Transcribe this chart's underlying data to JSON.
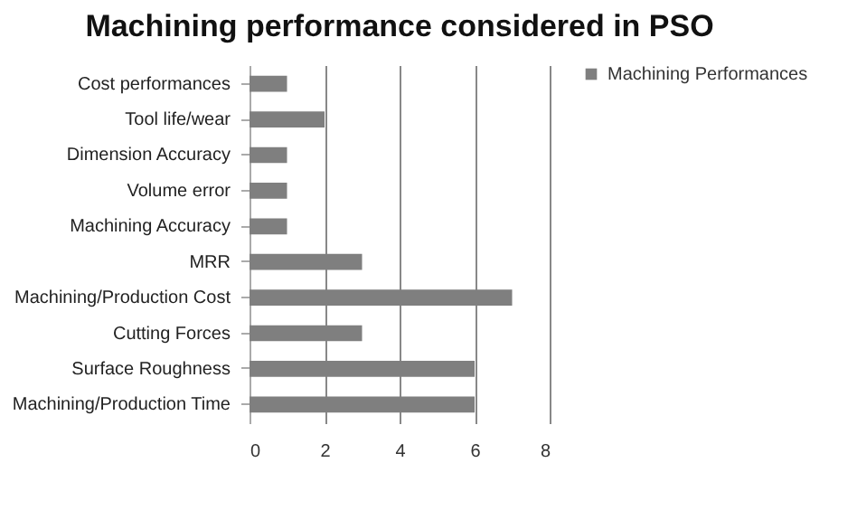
{
  "chart_data": {
    "type": "bar",
    "orientation": "horizontal",
    "title": "Machining performance considered in PSO",
    "categories": [
      "Cost performances",
      "Tool life/wear",
      "Dimension Accuracy",
      "Volume error",
      "Machining Accuracy",
      "MRR",
      "Machining/Production Cost",
      "Cutting Forces",
      "Surface Roughness",
      "Machining/Production Time"
    ],
    "series": [
      {
        "name": "Machining Performances",
        "color": "#7f7f7f",
        "values": [
          1,
          2,
          1,
          1,
          1,
          3,
          7,
          3,
          6,
          6
        ]
      }
    ],
    "xlim": [
      0,
      8
    ],
    "xticks": [
      0,
      2,
      4,
      6,
      8
    ],
    "grid": "x",
    "legend": "right"
  }
}
